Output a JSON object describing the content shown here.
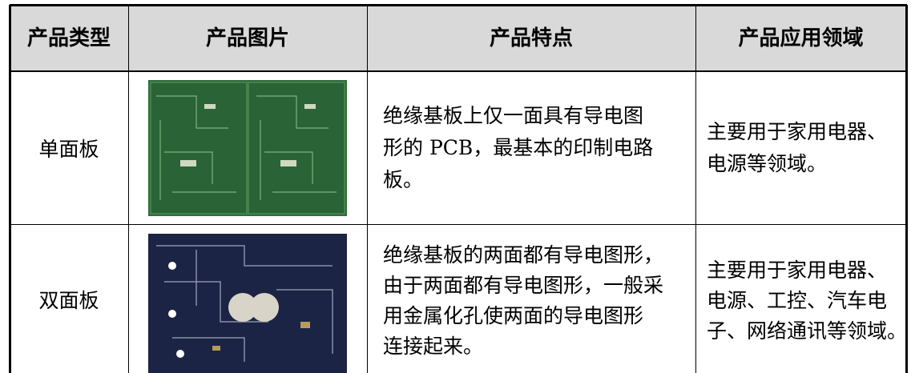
{
  "table": {
    "header": [
      "产品类型",
      "产品图片",
      "产品特点",
      "产品应用领域"
    ],
    "rows": [
      {
        "type": "单面板",
        "features": [
          "绝缘基板上仅一面具有导电图",
          "形的 PCB，最基本的印制电路",
          "板。"
        ],
        "applications": [
          "主要用于家用电器、",
          "电源等领域。"
        ]
      },
      {
        "type": "双面板",
        "features": [
          "绝缘基板的两面都有导电图形，",
          "由于两面都有导电图形，一般采",
          "用金属化孔使两面的导电图形",
          "连接起来。"
        ],
        "applications": [
          "主要用于家用电器、",
          "电源、工控、汽车电",
          "子、网络通讯等领域。"
        ]
      }
    ]
  }
}
